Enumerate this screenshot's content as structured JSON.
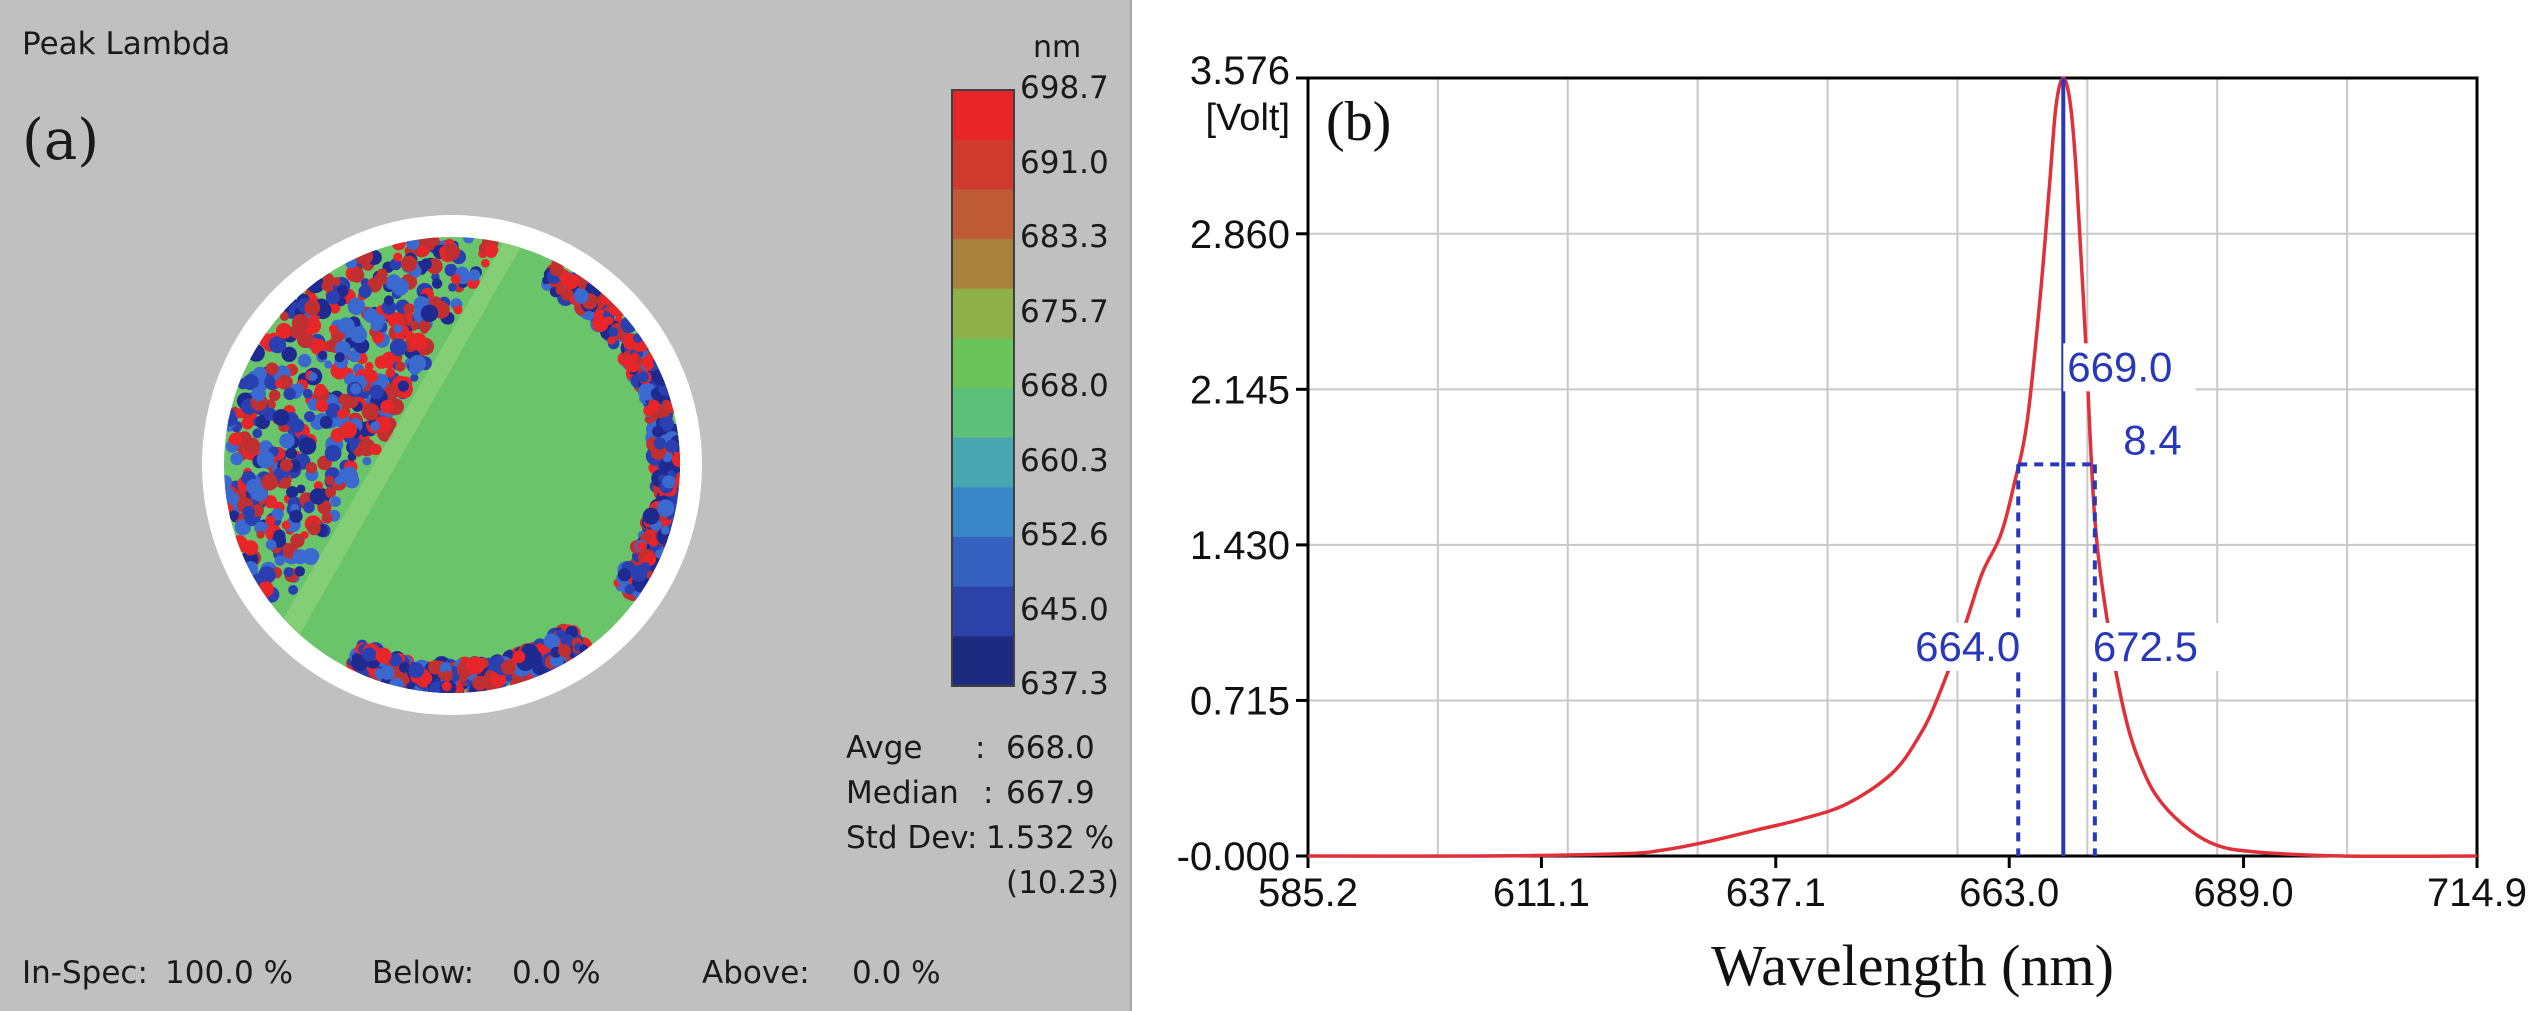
{
  "panel_a": {
    "heading": "Peak Lambda",
    "label": "(a)",
    "unit": "nm",
    "scale_ticks": [
      "698.7",
      "691.0",
      "683.3",
      "675.7",
      "668.0",
      "660.3",
      "652.6",
      "645.0",
      "637.3"
    ],
    "scale_colors": [
      "#e8262a",
      "#d03a2e",
      "#bf5a36",
      "#a8823c",
      "#8fb048",
      "#6ac45a",
      "#5cbf7a",
      "#48a6b0",
      "#3a84c8",
      "#3560c0",
      "#2c42a8",
      "#1e2a80"
    ],
    "disc_colors": {
      "uniform": "#6ac46a",
      "noise": [
        "#2a3fb0",
        "#e8262a",
        "#3a6ad0",
        "#c03030",
        "#1e2a90"
      ]
    },
    "stats": {
      "avg_label": "Avge",
      "avg_sep": ":",
      "avg_value": "668.0",
      "median_label": "Median",
      "median_sep": ":",
      "median_value": "667.9",
      "std_label": "Std Dev:",
      "std_value": "1.532 %",
      "std_sub": "(10.23)"
    },
    "footer": {
      "inspec_label": "In-Spec:",
      "inspec_value": "100.0 %",
      "below_label": "Below:",
      "below_value": "0.0 %",
      "above_label": "Above:",
      "above_value": "0.0 %"
    }
  },
  "chart_data": {
    "type": "line",
    "label": "(b)",
    "xlabel": "Wavelength (nm)",
    "ylabel": "[Volt]",
    "xlim": [
      585.2,
      714.9
    ],
    "ylim": [
      0,
      3.576
    ],
    "xticks": [
      "585.2",
      "611.1",
      "637.1",
      "663.0",
      "689.0",
      "714.9"
    ],
    "xtick_values": [
      585.2,
      611.1,
      637.1,
      663.0,
      689.0,
      714.9
    ],
    "yticks": [
      "-0.000",
      "0.715",
      "1.430",
      "2.145",
      "2.860",
      "3.576"
    ],
    "ytick_values": [
      0,
      0.715,
      1.43,
      2.145,
      2.86,
      3.576
    ],
    "grid": true,
    "line_color": "#e0303a",
    "marker_color": "#2838b8",
    "series": [
      {
        "x": [
          585.2,
          605,
          620,
          625,
          630,
          635,
          640,
          645,
          650,
          653,
          655,
          658,
          660,
          662,
          663.5,
          665,
          666.5,
          667.5,
          668.2,
          669.0,
          669.8,
          670.5,
          671.5,
          672.5,
          674,
          676,
          678,
          680,
          683,
          686,
          690,
          700,
          714.9
        ],
        "y": [
          0,
          0,
          0.01,
          0.03,
          0.07,
          0.12,
          0.17,
          0.24,
          0.38,
          0.55,
          0.72,
          1.05,
          1.3,
          1.47,
          1.7,
          2.0,
          2.6,
          3.1,
          3.45,
          3.576,
          3.45,
          3.1,
          2.35,
          1.55,
          1.05,
          0.62,
          0.38,
          0.24,
          0.12,
          0.05,
          0.02,
          0,
          0
        ]
      }
    ],
    "annotations": {
      "peak": {
        "x": 669.0,
        "label": "669.0"
      },
      "fwhm": {
        "value": "8.4",
        "y": 1.8
      },
      "left": {
        "x": 664.0,
        "label": "664.0"
      },
      "right": {
        "x": 672.5,
        "label": "672.5"
      }
    }
  }
}
